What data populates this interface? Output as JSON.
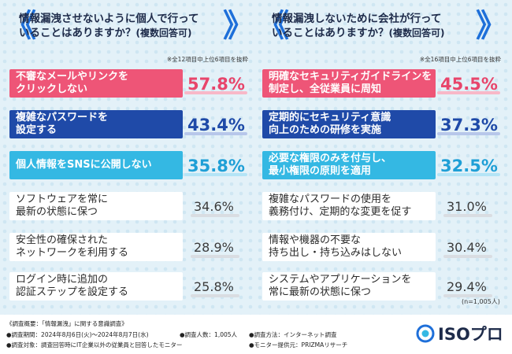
{
  "chart_data": [
    {
      "type": "bar",
      "title": "情報漏洩させないように個人で行っていることはありますか？",
      "title_line1": "情報漏洩させないように個人で行って",
      "title_line2": "いることはありますか？",
      "title_suffix": "(複数回答可)",
      "note": "※全12項目中上位6項目を抜粋",
      "categories": [
        "不審なメールやリンクを\nクリックしない",
        "複雑なパスワードを\n設定する",
        "個人情報をSNSに公開しない",
        "ソフトウェアを常に\n最新の状態に保つ",
        "安全性の確保された\nネットワークを利用する",
        "ログイン時に追加の\n認証ステップを設定する"
      ],
      "values": [
        57.8,
        43.4,
        35.8,
        34.6,
        28.9,
        25.8
      ],
      "labels": [
        "57.8%",
        "43.4%",
        "35.8%",
        "34.6%",
        "28.9%",
        "25.8%"
      ],
      "ylim": [
        0,
        100
      ]
    },
    {
      "type": "bar",
      "title": "情報漏洩しないために会社が行っていることはありますか？",
      "title_line1": "情報漏洩しないために会社が行って",
      "title_line2": "いることはありますか？",
      "title_suffix": "(複数回答可)",
      "note": "※全16項目中上位6項目を抜粋",
      "categories": [
        "明確なセキュリティガイドラインを\n制定し、全従業員に周知",
        "定期的にセキュリティ意識\n向上のための研修を実施",
        "必要な権限のみを付与し、\n最小権限の原則を適用",
        "複雑なパスワードの使用を\n義務付け、定期的な変更を促す",
        "情報や機器の不要な\n持ち出し・持ち込みはしない",
        "システムやアプリケーションを\n常に最新の状態に保つ"
      ],
      "values": [
        45.5,
        37.3,
        32.5,
        31.0,
        30.4,
        29.4
      ],
      "labels": [
        "45.5%",
        "37.3%",
        "32.5%",
        "31.0%",
        "30.4%",
        "29.4%"
      ],
      "ylim": [
        0,
        100
      ]
    }
  ],
  "sample_note": "(n=1,005人)",
  "footer": {
    "line1": "《調査概要：「情報漏洩」に関する意識調査》",
    "period": "●調査期間：2024年8月6日(火)～2024年8月7日(水)",
    "people": "●調査人数：1,005人",
    "method": "●調査方法：インターネット調査",
    "target": "●調査対象：調査回答時にIT企業以外の従業員と回答したモニター",
    "provider": "●モニター提供元：PRIZMAリサーチ"
  },
  "logo": {
    "text": "ISOプロ",
    "icon": "iso-logo-icon"
  },
  "colors": {
    "rank1": "#ee5577",
    "rank2": "#1f4aa8",
    "rank3": "#34b8e3",
    "rest": "#ffffff",
    "background": "#e3f1f8"
  }
}
